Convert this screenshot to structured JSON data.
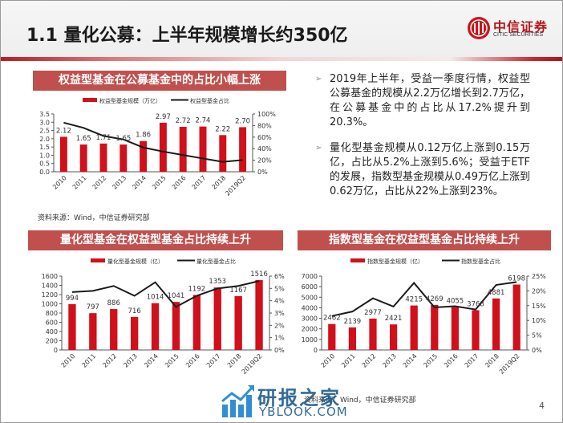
{
  "header": {
    "title": "1.1 量化公募：上半年规模增长约350亿",
    "logo_cn": "中信证券",
    "logo_en": "CITIC SECURITIES",
    "logo_icon": "citic-logo-icon"
  },
  "colors": {
    "bar": "#d0101b",
    "line": "#1a1a1a",
    "panel_title_bg": "#c0504d",
    "accent": "#b8141b"
  },
  "bullets": [
    "2019年上半年，受益一季度行情，权益型公募基金的规模从2.2万亿增长到2.7万亿，在公募基金中的占比从17.2%提升到20.3%。",
    "量化型基金规模从0.12万亿上涨到0.15万亿，占比从5.2%上涨到5.6%；受益于ETF的发展，指数型基金规模从0.49万亿上涨到0.62万亿，占比从22%上涨到23%。"
  ],
  "sources": {
    "top_left": "资料来源：Wind，中信证券研究部",
    "bottom": "资料来源：Wind，中信证券研究部"
  },
  "page_number": "4",
  "watermark": {
    "cn": "研报之家",
    "en": "YBLOOK.COM"
  },
  "chart_data": [
    {
      "type": "bar",
      "title": "权益型基金在公募基金中的占比小幅上涨",
      "categories": [
        "2010",
        "2011",
        "2012",
        "2013",
        "2014",
        "2015",
        "2016",
        "2017",
        "2018",
        "2019Q2"
      ],
      "series": [
        {
          "name": "权益型基金规模（万亿）",
          "type": "bar",
          "axis": "left",
          "values": [
            2.12,
            1.65,
            1.71,
            1.65,
            1.86,
            2.97,
            2.72,
            2.74,
            2.22,
            2.7
          ],
          "labels": [
            "2.12",
            "1.65",
            "1.71",
            "1.65",
            "1.86",
            "2.97",
            "2.72",
            "2.74",
            "2.22",
            "2.70"
          ]
        },
        {
          "name": "权益型基金占比",
          "type": "line",
          "axis": "right",
          "values": [
            85,
            76,
            62,
            56,
            42,
            35,
            29,
            23,
            17.2,
            20.3
          ]
        }
      ],
      "ylim": [
        0,
        3.5
      ],
      "yticks": [
        "0.0",
        "0.5",
        "1.0",
        "1.5",
        "2.0",
        "2.5",
        "3.0",
        "3.5"
      ],
      "y2lim": [
        0,
        100
      ],
      "y2ticks": [
        "0%",
        "20%",
        "40%",
        "60%",
        "80%",
        "100%"
      ],
      "legend": "top"
    },
    {
      "type": "bar",
      "title": "量化型基金在权益型基金占比持续上升",
      "categories": [
        "2010",
        "2011",
        "2012",
        "2013",
        "2014",
        "2015",
        "2016",
        "2017",
        "2018",
        "2019Q2"
      ],
      "series": [
        {
          "name": "量化型基金规模（亿）",
          "type": "bar",
          "axis": "left",
          "values": [
            994,
            797,
            886,
            716,
            1014,
            1041,
            1192,
            1353,
            1167,
            1516
          ],
          "labels": [
            "994",
            "797",
            "886",
            "716",
            "1014",
            "1041",
            "1192",
            "1353",
            "1167",
            "1516"
          ]
        },
        {
          "name": "量化型基金占比",
          "type": "line",
          "axis": "right",
          "values": [
            4.7,
            4.8,
            5.2,
            4.4,
            5.5,
            3.5,
            4.4,
            5.0,
            5.2,
            5.6
          ]
        }
      ],
      "ylim": [
        0,
        1600
      ],
      "yticks": [
        "0",
        "200",
        "400",
        "600",
        "800",
        "1000",
        "1200",
        "1400",
        "1600"
      ],
      "y2lim": [
        0,
        6
      ],
      "y2ticks": [
        "0%",
        "1%",
        "2%",
        "3%",
        "4%",
        "5%",
        "6%"
      ],
      "legend": "top"
    },
    {
      "type": "bar",
      "title": "指数型基金在权益型基金占比持续上升",
      "categories": [
        "2010",
        "2011",
        "2012",
        "2013",
        "2014",
        "2015",
        "2016",
        "2017",
        "2018",
        "2019Q2"
      ],
      "series": [
        {
          "name": "指数型基金规模（亿）",
          "type": "bar",
          "axis": "left",
          "values": [
            2462,
            2139,
            2977,
            2421,
            4215,
            4269,
            4055,
            3768,
            4881,
            6198
          ],
          "labels": [
            "2462",
            "2139",
            "2977",
            "2421",
            "4215",
            "4269",
            "4055",
            "3768",
            "4881",
            "6198"
          ]
        },
        {
          "name": "指数型基金占比",
          "type": "line",
          "axis": "right",
          "values": [
            11.5,
            13.0,
            17.5,
            14.7,
            22.7,
            14.4,
            14.8,
            13.7,
            22.0,
            23.0
          ]
        }
      ],
      "ylim": [
        0,
        7000
      ],
      "yticks": [
        "0",
        "1000",
        "2000",
        "3000",
        "4000",
        "5000",
        "6000",
        "7000"
      ],
      "y2lim": [
        0,
        25
      ],
      "y2ticks": [
        "0%",
        "5%",
        "10%",
        "15%",
        "20%",
        "25%"
      ],
      "legend": "top"
    }
  ]
}
